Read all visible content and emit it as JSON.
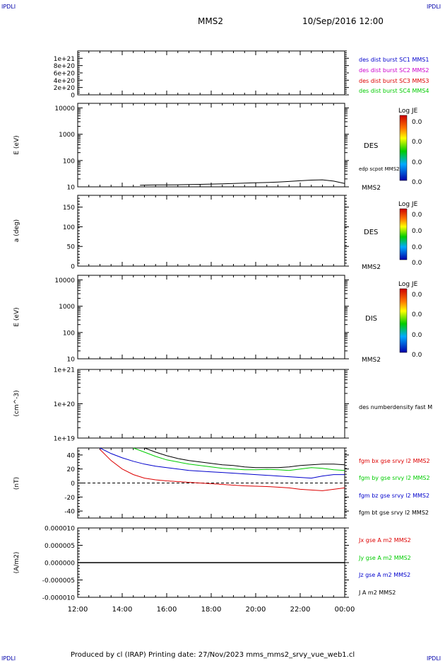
{
  "header": {
    "corner_left": "IPDLI",
    "corner_right": "IPDLI",
    "spacecraft": "MMS2",
    "datetime": "10/Sep/2016 12:00",
    "footer_left": "IPDLI",
    "footer_right": "IPDLI",
    "footer": "Produced by cl (IRAP)   Printing date: 27/Nov/2023   mms_mms2_srvy_vue_web1.cl"
  },
  "colors": {
    "blue": "#0000cc",
    "magenta": "#cc00cc",
    "red": "#dd0000",
    "green": "#00cc00",
    "black": "#000000"
  },
  "chart_data": [
    {
      "type": "line",
      "panel": "des-dist-burst",
      "ylabel": "",
      "ylim": [
        0,
        1.2e+21
      ],
      "yticks": [
        "0",
        "2e+20",
        "4e+20",
        "6e+20",
        "8e+20",
        "1e+21"
      ],
      "reference_line": 0,
      "legend": [
        {
          "label": "des dist burst SC1 MMS1",
          "color": "#0000cc"
        },
        {
          "label": "des dist burst SC2 MMS2",
          "color": "#cc00cc"
        },
        {
          "label": "des dist burst SC3 MMS3",
          "color": "#dd0000"
        },
        {
          "label": "des dist burst SC4 MMS4",
          "color": "#00cc00"
        }
      ]
    },
    {
      "type": "heatmap",
      "panel": "des-energy",
      "ylabel": "E (eV)",
      "yscale": "log",
      "ylim": [
        10,
        15000
      ],
      "yticks": [
        "10",
        "100",
        "1000",
        "10000"
      ],
      "instrument": "DES",
      "spacecraft": "MMS2",
      "colorbar": {
        "title": "Log JE",
        "ticks": [
          "0.0",
          "0.0",
          "0.0",
          "0.0"
        ]
      },
      "overlay_label": "edp scpot MMS2",
      "overlay": {
        "x_hours": [
          14.8,
          15.5,
          16.0,
          16.5,
          17.0,
          17.5,
          18.0,
          18.5,
          19.0,
          19.5,
          20.0,
          20.5,
          21.0,
          21.5,
          22.0,
          22.5,
          23.0,
          23.5,
          24.0
        ],
        "values": [
          11.5,
          11.8,
          11.8,
          12.0,
          12.2,
          12.4,
          12.7,
          13.0,
          13.4,
          13.8,
          14.2,
          14.6,
          15.2,
          16.0,
          17.0,
          18.0,
          18.5,
          16.5,
          13.5
        ]
      }
    },
    {
      "type": "heatmap",
      "panel": "des-pitch",
      "ylabel": "a (deg)",
      "ylim": [
        0,
        180
      ],
      "yticks": [
        "0",
        "50",
        "100",
        "150"
      ],
      "instrument": "DES",
      "spacecraft": "MMS2",
      "colorbar": {
        "title": "Log JE",
        "ticks": [
          "0.0",
          "0.0",
          "0.0",
          "0.0"
        ]
      }
    },
    {
      "type": "heatmap",
      "panel": "dis-energy",
      "ylabel": "E (eV)",
      "yscale": "log",
      "ylim": [
        10,
        15000
      ],
      "yticks": [
        "10",
        "100",
        "1000",
        "10000"
      ],
      "instrument": "DIS",
      "spacecraft": "MMS2",
      "colorbar": {
        "title": "Log JE",
        "ticks": [
          "0.0",
          "0.0",
          "0.0",
          "0.0"
        ]
      }
    },
    {
      "type": "line",
      "panel": "density",
      "ylabel": "(cm^-3)",
      "yscale": "log",
      "ylim": [
        1e+19,
        1e+21
      ],
      "yticks": [
        "1e+19",
        "1e+20",
        "1e+21"
      ],
      "legend": [
        {
          "label": "des numberdensity fast M",
          "color": "#000000"
        }
      ]
    },
    {
      "type": "line",
      "panel": "fgm",
      "ylabel": "(nT)",
      "ylim": [
        -50,
        50
      ],
      "yticks": [
        "-40",
        "-20",
        "0",
        "20",
        "40"
      ],
      "reference_line": 0,
      "x_hours": [
        13.0,
        13.5,
        14.0,
        14.5,
        15.0,
        15.5,
        16.0,
        16.5,
        17.0,
        17.5,
        18.0,
        18.5,
        19.0,
        19.5,
        20.0,
        20.5,
        21.0,
        21.5,
        22.0,
        22.5,
        23.0,
        23.5,
        24.0
      ],
      "series": [
        {
          "name": "fgm bx gse srvy l2 MMS2",
          "color": "#dd0000",
          "values": [
            48,
            32,
            20,
            12,
            7,
            4.5,
            3,
            2,
            1,
            0,
            -1,
            -2,
            -3,
            -4,
            -4.5,
            -5,
            -6,
            -7,
            -9,
            -10,
            -11,
            -9,
            -7
          ]
        },
        {
          "name": "fgm by gse srvy l2 MMS2",
          "color": "#00cc00",
          "values": [
            null,
            null,
            null,
            50,
            44,
            38,
            33,
            30,
            27,
            25,
            23,
            21,
            20,
            19,
            19,
            19.5,
            19,
            18,
            20,
            22,
            21,
            19,
            18
          ]
        },
        {
          "name": "fgm bz gse srvy l2 MMS2",
          "color": "#0000cc",
          "values": [
            50,
            42,
            36,
            31,
            27,
            24,
            22,
            20,
            18,
            17,
            16,
            15,
            14,
            13,
            12,
            11,
            10,
            9,
            8,
            7,
            10,
            12,
            12
          ]
        },
        {
          "name": "fgm bt gse srvy l2 MMS2",
          "color": "#000000",
          "values": [
            null,
            null,
            null,
            null,
            50,
            44,
            39,
            35,
            32,
            30,
            28,
            26,
            25,
            23,
            22,
            22,
            22,
            23,
            25,
            26,
            27,
            27,
            26
          ]
        }
      ]
    },
    {
      "type": "line",
      "panel": "current",
      "ylabel": "(A/m2)",
      "ylim": [
        -1e-05,
        1e-05
      ],
      "yticks": [
        "-0.000010",
        "-0.000005",
        "0.000000",
        "0.000005",
        "0.000010"
      ],
      "flat_value": 0,
      "legend": [
        {
          "label": "Jx gse A m2 MMS2",
          "color": "#dd0000"
        },
        {
          "label": "Jy gse A m2 MMS2",
          "color": "#00cc00"
        },
        {
          "label": "Jz gse A m2 MMS2",
          "color": "#0000cc"
        },
        {
          "label": "J A m2 MMS2",
          "color": "#000000"
        }
      ]
    }
  ],
  "time_axis": {
    "range_hours": [
      12,
      24
    ],
    "tick_labels": [
      "12:00",
      "14:00",
      "16:00",
      "18:00",
      "20:00",
      "22:00",
      "00:00"
    ]
  }
}
